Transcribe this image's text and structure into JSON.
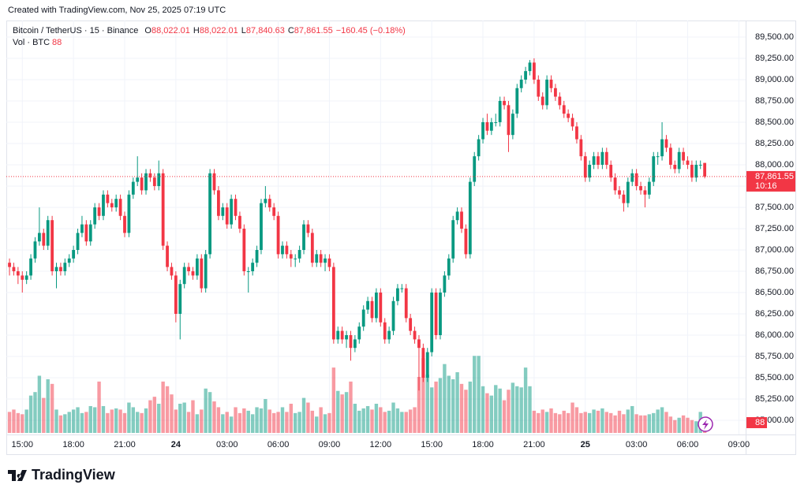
{
  "header": "Created with TradingView.com, Nov 25, 2025 07:19 UTC",
  "brand": "TradingView",
  "chart_data": {
    "type": "candlestick",
    "symbol": "Bitcoin / TetherUS · 15 · Binance",
    "ohlc_legend": [
      {
        "key": "O",
        "value": "88,022.01"
      },
      {
        "key": "H",
        "value": "88,022.01"
      },
      {
        "key": "L",
        "value": "87,840.63"
      },
      {
        "key": "C",
        "value": "87,861.55"
      }
    ],
    "change": "−160.45 (−0.18%)",
    "volume_legend": "Vol · BTC",
    "volume_value": "88",
    "price_label": "87,861.55",
    "countdown": "10:16",
    "up_color": "#089981",
    "down_color": "#f23645",
    "grid": true,
    "xlim": [
      -0.75,
      172.6
    ],
    "xticks": [
      {
        "value": 3,
        "label": "15:00"
      },
      {
        "value": 15,
        "label": "18:00"
      },
      {
        "value": 27,
        "label": "21:00"
      },
      {
        "value": 39,
        "label": "24"
      },
      {
        "value": 51,
        "label": "03:00"
      },
      {
        "value": 63,
        "label": "06:00"
      },
      {
        "value": 75,
        "label": "09:00"
      },
      {
        "value": 87,
        "label": "12:00"
      },
      {
        "value": 99,
        "label": "15:00"
      },
      {
        "value": 111,
        "label": "18:00"
      },
      {
        "value": 123,
        "label": "21:00"
      },
      {
        "value": 135,
        "label": "25"
      },
      {
        "value": 147,
        "label": "03:00"
      },
      {
        "value": 159,
        "label": "06:00"
      },
      {
        "value": 171,
        "label": "09:00"
      }
    ],
    "ylim": [
      84852,
      89694
    ],
    "yticks": [
      {
        "value": 85000,
        "label": "85,000.00"
      },
      {
        "value": 85250,
        "label": "85,250.00"
      },
      {
        "value": 85500,
        "label": "85,500.00"
      },
      {
        "value": 85750,
        "label": "85,750.00"
      },
      {
        "value": 86000,
        "label": "86,000.00"
      },
      {
        "value": 86250,
        "label": "86,250.00"
      },
      {
        "value": 86500,
        "label": "86,500.00"
      },
      {
        "value": 86750,
        "label": "86,750.00"
      },
      {
        "value": 87000,
        "label": "87,000.00"
      },
      {
        "value": 87250,
        "label": "87,250.00"
      },
      {
        "value": 87500,
        "label": "87,500.00"
      },
      {
        "value": 87750,
        "label": "87,750.00"
      },
      {
        "value": 88000,
        "label": "88,000.00"
      },
      {
        "value": 88250,
        "label": "88,250.00"
      },
      {
        "value": 88500,
        "label": "88,500.00"
      },
      {
        "value": 88750,
        "label": "88,750.00"
      },
      {
        "value": 89000,
        "label": "89,000.00"
      },
      {
        "value": 89250,
        "label": "89,250.00"
      },
      {
        "value": 89500,
        "label": "89,500.00"
      }
    ],
    "ohlc": [
      [
        86850,
        86900,
        86700,
        86800
      ],
      [
        86800,
        86850,
        86700,
        86750
      ],
      [
        86750,
        86800,
        86600,
        86700
      ],
      [
        86700,
        86750,
        86500,
        86650
      ],
      [
        86650,
        86750,
        86600,
        86700
      ],
      [
        86700,
        86950,
        86650,
        86900
      ],
      [
        86900,
        87150,
        86850,
        87100
      ],
      [
        87100,
        87500,
        87050,
        87200
      ],
      [
        87200,
        87250,
        87000,
        87050
      ],
      [
        87050,
        87400,
        87000,
        87350
      ],
      [
        87350,
        87400,
        86700,
        86750
      ],
      [
        86750,
        86850,
        86550,
        86800
      ],
      [
        86800,
        86850,
        86700,
        86750
      ],
      [
        86750,
        86900,
        86700,
        86850
      ],
      [
        86850,
        86950,
        86800,
        86900
      ],
      [
        86900,
        87050,
        86850,
        87000
      ],
      [
        87000,
        87250,
        86950,
        87200
      ],
      [
        87200,
        87400,
        87150,
        87300
      ],
      [
        87300,
        87350,
        87050,
        87100
      ],
      [
        87100,
        87350,
        87050,
        87300
      ],
      [
        87300,
        87550,
        87250,
        87500
      ],
      [
        87500,
        87550,
        87350,
        87400
      ],
      [
        87400,
        87700,
        87350,
        87650
      ],
      [
        87650,
        87700,
        87500,
        87550
      ],
      [
        87550,
        87600,
        87450,
        87500
      ],
      [
        87500,
        87650,
        87450,
        87600
      ],
      [
        87600,
        87650,
        87350,
        87400
      ],
      [
        87400,
        87450,
        87150,
        87200
      ],
      [
        87200,
        87700,
        87150,
        87650
      ],
      [
        87650,
        87850,
        87600,
        87800
      ],
      [
        87800,
        88100,
        87750,
        87850
      ],
      [
        87850,
        87900,
        87650,
        87700
      ],
      [
        87700,
        87950,
        87650,
        87900
      ],
      [
        87900,
        87950,
        87800,
        87850
      ],
      [
        87850,
        87900,
        87700,
        87750
      ],
      [
        87750,
        88050,
        87700,
        87900
      ],
      [
        87900,
        87950,
        87000,
        87050
      ],
      [
        87050,
        87100,
        86750,
        86800
      ],
      [
        86800,
        86850,
        86650,
        86700
      ],
      [
        86700,
        86750,
        86150,
        86250
      ],
      [
        86250,
        86650,
        85950,
        86600
      ],
      [
        86600,
        86850,
        86550,
        86800
      ],
      [
        86800,
        86850,
        86700,
        86750
      ],
      [
        86750,
        86800,
        86650,
        86700
      ],
      [
        86700,
        86950,
        86650,
        86900
      ],
      [
        86900,
        86950,
        86500,
        86550
      ],
      [
        86550,
        87000,
        86500,
        86950
      ],
      [
        86950,
        87950,
        86900,
        87900
      ],
      [
        87900,
        87950,
        87650,
        87700
      ],
      [
        87700,
        87750,
        87350,
        87400
      ],
      [
        87400,
        87550,
        87350,
        87500
      ],
      [
        87500,
        87550,
        87250,
        87300
      ],
      [
        87300,
        87650,
        87250,
        87600
      ],
      [
        87600,
        87650,
        87350,
        87400
      ],
      [
        87400,
        87450,
        87200,
        87250
      ],
      [
        87250,
        87300,
        86700,
        86750
      ],
      [
        86750,
        86800,
        86500,
        86750
      ],
      [
        86750,
        86900,
        86700,
        86850
      ],
      [
        86850,
        87050,
        86800,
        87000
      ],
      [
        87000,
        87600,
        86950,
        87550
      ],
      [
        87550,
        87750,
        87500,
        87600
      ],
      [
        87600,
        87650,
        87450,
        87500
      ],
      [
        87500,
        87550,
        87350,
        87400
      ],
      [
        87400,
        87450,
        86900,
        86950
      ],
      [
        86950,
        87100,
        86900,
        87050
      ],
      [
        87050,
        87100,
        86900,
        86950
      ],
      [
        86950,
        87000,
        86800,
        86900
      ],
      [
        86900,
        86950,
        86800,
        86900
      ],
      [
        86900,
        87050,
        86850,
        87000
      ],
      [
        87000,
        87350,
        86950,
        87300
      ],
      [
        87300,
        87350,
        87150,
        87200
      ],
      [
        87200,
        87250,
        86800,
        86850
      ],
      [
        86850,
        87000,
        86800,
        86950
      ],
      [
        86950,
        87000,
        86800,
        86850
      ],
      [
        86850,
        86950,
        86750,
        86900
      ],
      [
        86900,
        86950,
        86750,
        86800
      ],
      [
        86800,
        86850,
        85900,
        85950
      ],
      [
        85950,
        86100,
        85900,
        86050
      ],
      [
        86050,
        86100,
        85900,
        85950
      ],
      [
        85950,
        86050,
        85850,
        86000
      ],
      [
        86000,
        86050,
        85700,
        85850
      ],
      [
        85850,
        86000,
        85800,
        85950
      ],
      [
        85950,
        86150,
        85900,
        86100
      ],
      [
        86100,
        86350,
        86050,
        86300
      ],
      [
        86300,
        86450,
        86250,
        86400
      ],
      [
        86400,
        86450,
        86150,
        86200
      ],
      [
        86200,
        86550,
        86150,
        86500
      ],
      [
        86500,
        86550,
        86100,
        86150
      ],
      [
        86150,
        86200,
        85900,
        85950
      ],
      [
        85950,
        86100,
        85900,
        86050
      ],
      [
        86050,
        86450,
        86000,
        86400
      ],
      [
        86400,
        86600,
        86350,
        86550
      ],
      [
        86550,
        86600,
        86500,
        86550
      ],
      [
        86550,
        86600,
        86150,
        86200
      ],
      [
        86200,
        86250,
        86000,
        86050
      ],
      [
        86050,
        86100,
        85900,
        85950
      ],
      [
        85950,
        86000,
        85350,
        85850
      ],
      [
        85850,
        85900,
        85450,
        85500
      ],
      [
        85500,
        85850,
        85450,
        85800
      ],
      [
        85800,
        86550,
        85750,
        86500
      ],
      [
        86500,
        86550,
        85950,
        86000
      ],
      [
        86000,
        86550,
        85950,
        86500
      ],
      [
        86500,
        86750,
        86450,
        86700
      ],
      [
        86700,
        86950,
        86650,
        86900
      ],
      [
        86900,
        87400,
        86850,
        87350
      ],
      [
        87350,
        87500,
        87300,
        87450
      ],
      [
        87450,
        87500,
        87200,
        87250
      ],
      [
        87250,
        87300,
        86900,
        86950
      ],
      [
        86950,
        87850,
        86900,
        87800
      ],
      [
        87800,
        88150,
        87750,
        88100
      ],
      [
        88100,
        88350,
        88050,
        88300
      ],
      [
        88300,
        88550,
        88250,
        88500
      ],
      [
        88500,
        88600,
        88350,
        88400
      ],
      [
        88400,
        88550,
        88350,
        88500
      ],
      [
        88500,
        88600,
        88450,
        88500
      ],
      [
        88500,
        88800,
        88450,
        88750
      ],
      [
        88750,
        88800,
        88650,
        88700
      ],
      [
        88700,
        88750,
        88150,
        88350
      ],
      [
        88350,
        88650,
        88300,
        88600
      ],
      [
        88600,
        88950,
        88550,
        88900
      ],
      [
        88900,
        89050,
        88850,
        89000
      ],
      [
        89000,
        89150,
        88950,
        89100
      ],
      [
        89100,
        89230,
        89050,
        89200
      ],
      [
        89200,
        89250,
        88950,
        89000
      ],
      [
        89000,
        89050,
        88750,
        88800
      ],
      [
        88800,
        88850,
        88650,
        88700
      ],
      [
        88700,
        89050,
        88650,
        89000
      ],
      [
        89000,
        89050,
        88850,
        88900
      ],
      [
        88900,
        88950,
        88750,
        88800
      ],
      [
        88800,
        88850,
        88650,
        88700
      ],
      [
        88700,
        88750,
        88550,
        88600
      ],
      [
        88600,
        88650,
        88500,
        88550
      ],
      [
        88550,
        88600,
        88400,
        88450
      ],
      [
        88450,
        88500,
        88250,
        88300
      ],
      [
        88300,
        88350,
        88050,
        88100
      ],
      [
        88100,
        88150,
        87800,
        87850
      ],
      [
        87850,
        88050,
        87800,
        88000
      ],
      [
        88000,
        88150,
        87950,
        88100
      ],
      [
        88100,
        88150,
        87950,
        88000
      ],
      [
        88000,
        88200,
        87950,
        88150
      ],
      [
        88150,
        88200,
        87950,
        88000
      ],
      [
        88000,
        88050,
        87800,
        87850
      ],
      [
        87850,
        87900,
        87650,
        87700
      ],
      [
        87700,
        87750,
        87600,
        87650
      ],
      [
        87650,
        87700,
        87450,
        87550
      ],
      [
        87550,
        87850,
        87500,
        87800
      ],
      [
        87800,
        87950,
        87750,
        87900
      ],
      [
        87900,
        87950,
        87700,
        87750
      ],
      [
        87750,
        87800,
        87650,
        87700
      ],
      [
        87700,
        87750,
        87500,
        87650
      ],
      [
        87650,
        87850,
        87600,
        87800
      ],
      [
        87800,
        88150,
        87750,
        88100
      ],
      [
        88100,
        88150,
        88000,
        88100
      ],
      [
        88100,
        88500,
        88050,
        88300
      ],
      [
        88300,
        88350,
        88150,
        88200
      ],
      [
        88200,
        88250,
        87950,
        88000
      ],
      [
        88000,
        88050,
        87900,
        87950
      ],
      [
        87950,
        88200,
        87900,
        88150
      ],
      [
        88150,
        88200,
        88000,
        88050
      ],
      [
        88050,
        88100,
        87950,
        88000
      ],
      [
        88000,
        88050,
        87800,
        87850
      ],
      [
        87850,
        88050,
        87800,
        88000
      ],
      [
        88000,
        88050,
        87950,
        88000
      ],
      [
        88022.01,
        88022.01,
        87840.63,
        87861.55
      ]
    ],
    "volume": [
      180,
      200,
      170,
      160,
      200,
      320,
      350,
      490,
      300,
      460,
      420,
      200,
      150,
      160,
      180,
      200,
      220,
      170,
      180,
      230,
      220,
      440,
      230,
      170,
      200,
      210,
      200,
      170,
      260,
      220,
      180,
      170,
      210,
      280,
      310,
      250,
      440,
      400,
      330,
      200,
      250,
      260,
      180,
      280,
      160,
      200,
      380,
      350,
      270,
      220,
      160,
      180,
      140,
      220,
      170,
      210,
      190,
      160,
      220,
      210,
      290,
      200,
      170,
      180,
      220,
      180,
      250,
      170,
      180,
      300,
      260,
      190,
      140,
      220,
      160,
      170,
      560,
      360,
      330,
      350,
      440,
      250,
      190,
      210,
      230,
      200,
      250,
      220,
      180,
      190,
      260,
      210,
      180,
      180,
      200,
      220,
      480,
      640,
      500,
      390,
      440,
      470,
      590,
      490,
      460,
      520,
      420,
      370,
      440,
      660,
      660,
      400,
      340,
      320,
      410,
      380,
      280,
      370,
      430,
      400,
      390,
      560,
      400,
      190,
      170,
      200,
      180,
      210,
      170,
      160,
      190,
      170,
      260,
      220,
      170,
      180,
      170,
      200,
      190,
      210,
      180,
      170,
      150,
      190,
      160,
      200,
      230,
      160,
      150,
      150,
      160,
      170,
      200,
      220,
      180,
      140,
      110,
      130,
      150,
      130,
      110,
      100,
      180,
      88
    ]
  }
}
